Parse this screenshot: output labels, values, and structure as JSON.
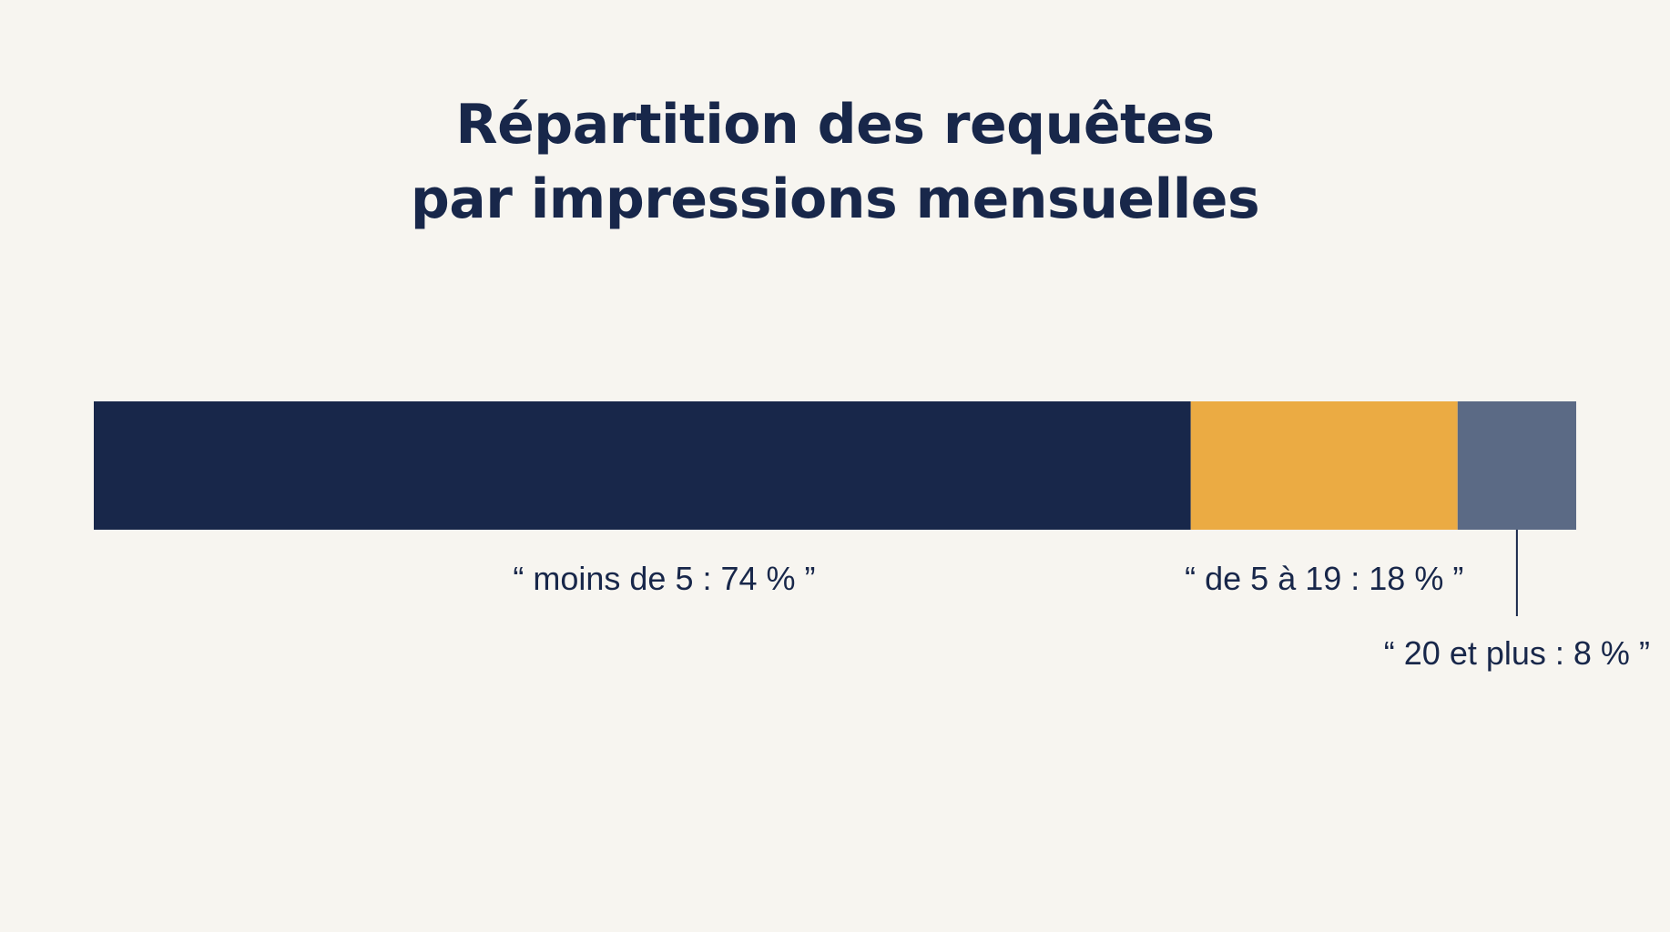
{
  "chart_data": {
    "type": "bar",
    "orientation": "horizontal-stacked",
    "title": "Répartition des requêtes par impressions mensuelles",
    "title_lines": [
      "Répartition des requêtes",
      "par impressions mensuelles"
    ],
    "xlabel": "",
    "ylabel": "",
    "xlim": [
      0,
      100
    ],
    "grid": false,
    "legend": "none",
    "segments": [
      {
        "category": "moins de 5",
        "value": 74,
        "color": "#18274a",
        "label": "“ moins de 5 : 74 % ”"
      },
      {
        "category": "de 5 à 19",
        "value": 18,
        "color": "#ebab43",
        "label": "“ de 5 à 19 : 18 % ”"
      },
      {
        "category": "20 et plus",
        "value": 8,
        "color": "#5b6a85",
        "label": "“ 20 et plus : 8 % ”"
      }
    ]
  },
  "colors": {
    "background": "#f7f5f0",
    "text": "#18274a"
  }
}
